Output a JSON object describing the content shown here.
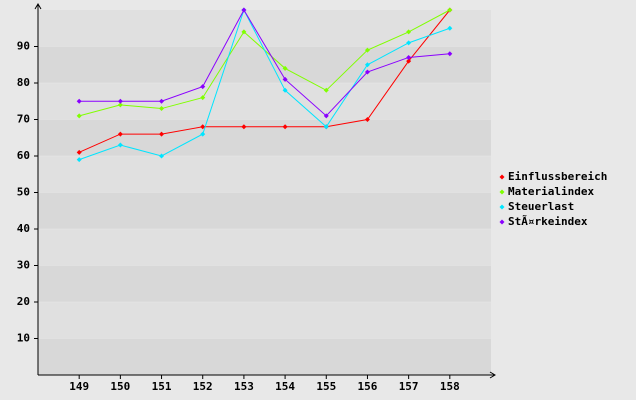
{
  "chart_data": {
    "type": "line",
    "categories": [
      "149",
      "150",
      "151",
      "152",
      "153",
      "154",
      "155",
      "156",
      "157",
      "158"
    ],
    "series": [
      {
        "name": "Einflussbereich",
        "color": "#ff0000",
        "values": [
          61,
          66,
          66,
          68,
          68,
          68,
          68,
          70,
          86,
          100
        ]
      },
      {
        "name": "Materialindex",
        "color": "#80ff00",
        "values": [
          71,
          74,
          73,
          76,
          94,
          84,
          78,
          89,
          94,
          100
        ]
      },
      {
        "name": "Steuerlast",
        "color": "#00e5ff",
        "values": [
          59,
          63,
          60,
          66,
          100,
          78,
          68,
          85,
          91,
          95
        ]
      },
      {
        "name": "StÃ¤rkeindex",
        "color": "#8a00ff",
        "values": [
          75,
          75,
          75,
          79,
          100,
          81,
          71,
          83,
          87,
          88
        ]
      }
    ],
    "ylim": [
      0,
      100
    ],
    "yticks": [
      10,
      20,
      30,
      40,
      50,
      60,
      70,
      80,
      90
    ],
    "grid": true,
    "legend": "right"
  }
}
